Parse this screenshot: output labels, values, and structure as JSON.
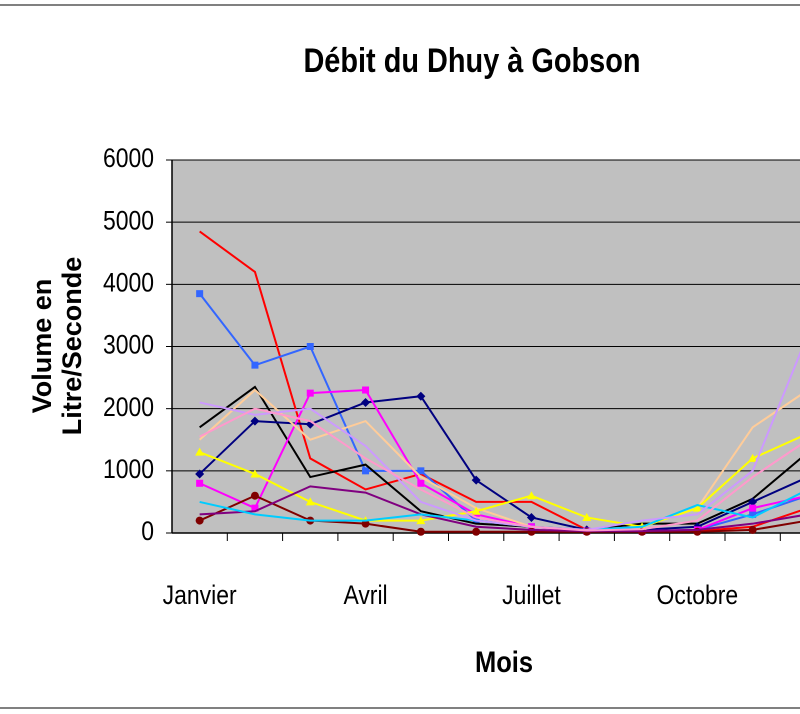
{
  "chart_data": {
    "type": "line",
    "title": "Débit du Dhuy à Gobson",
    "y_label": [
      "Volume en",
      "Litre/Seconde"
    ],
    "x_label": "Mois",
    "categories": [
      "Janvier",
      null,
      null,
      "Avril",
      null,
      null,
      "Juillet",
      null,
      null,
      "Octobre",
      null,
      null
    ],
    "ylim": [
      0,
      6000
    ],
    "yticks": [
      0,
      1000,
      2000,
      3000,
      4000,
      5000,
      6000
    ],
    "grid": true,
    "plot_background": "#c0c0c0",
    "series": [
      {
        "color": "#ff0000",
        "marker": "none",
        "values": [
          4850,
          4200,
          1200,
          700,
          950,
          500,
          500,
          50,
          30,
          30,
          100,
          400
        ]
      },
      {
        "color": "#3366ff",
        "marker": "square",
        "values": [
          3850,
          2700,
          3000,
          1000,
          1000,
          200,
          100,
          30,
          30,
          50,
          300,
          600
        ]
      },
      {
        "color": "#000000",
        "marker": "none",
        "values": [
          1700,
          2350,
          900,
          1100,
          350,
          150,
          100,
          50,
          150,
          150,
          550,
          1300
        ]
      },
      {
        "color": "#000080",
        "marker": "diamond",
        "values": [
          950,
          1800,
          1750,
          2100,
          2200,
          850,
          250,
          50,
          50,
          100,
          500,
          900
        ]
      },
      {
        "color": "#ff00ff",
        "marker": "square",
        "values": [
          800,
          400,
          2250,
          2300,
          800,
          300,
          100,
          30,
          30,
          50,
          400,
          600
        ]
      },
      {
        "color": "#ffcc99",
        "marker": "none",
        "values": [
          1500,
          2300,
          1500,
          1800,
          900,
          400,
          100,
          50,
          100,
          400,
          1700,
          2300
        ]
      },
      {
        "color": "#ffff00",
        "marker": "triangle",
        "values": [
          1300,
          950,
          500,
          200,
          200,
          350,
          600,
          250,
          100,
          400,
          1200,
          1600
        ]
      },
      {
        "color": "#800000",
        "marker": "circle",
        "values": [
          200,
          600,
          200,
          150,
          20,
          20,
          20,
          20,
          20,
          20,
          50,
          200
        ]
      },
      {
        "color": "#800080",
        "marker": "none",
        "values": [
          300,
          350,
          750,
          650,
          300,
          100,
          50,
          30,
          30,
          50,
          150,
          300
        ]
      },
      {
        "color": "#00ccff",
        "marker": "none",
        "values": [
          500,
          300,
          200,
          200,
          300,
          200,
          100,
          50,
          100,
          450,
          250,
          700
        ]
      },
      {
        "color": "#cc99ff",
        "marker": "none",
        "values": [
          2100,
          1900,
          2000,
          1400,
          500,
          200,
          100,
          50,
          200,
          300,
          1000,
          3200
        ]
      },
      {
        "color": "#ff99cc",
        "marker": "none",
        "values": [
          1550,
          2000,
          1800,
          1200,
          700,
          250,
          100,
          40,
          60,
          200,
          900,
          1500
        ]
      }
    ]
  }
}
